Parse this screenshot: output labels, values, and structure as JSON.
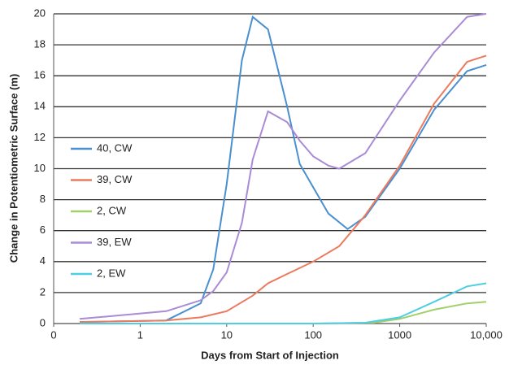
{
  "chart_data": {
    "type": "line",
    "xlabel": "Days from Start of Injection",
    "ylabel": "Change in Potentiometric Surface (m)",
    "xscale": "log",
    "xlim": [
      0.1,
      10000
    ],
    "xticks": [
      {
        "value": 0.1,
        "label": "0"
      },
      1,
      10,
      100,
      1000,
      {
        "value": 10000,
        "label": "10,000"
      }
    ],
    "ylim": [
      0,
      20
    ],
    "yticks": [
      0,
      2,
      4,
      6,
      8,
      10,
      12,
      14,
      16,
      18,
      20
    ],
    "grid": true,
    "legend": "left",
    "series": [
      {
        "name": "40, CW",
        "color": "#4a8fd0",
        "x": [
          0.2,
          2,
          5,
          7,
          10,
          15,
          20,
          30,
          50,
          70,
          100,
          150,
          250,
          400,
          1000,
          2500,
          6000,
          10000
        ],
        "values": [
          0.1,
          0.2,
          1.3,
          3.5,
          9,
          17,
          19.8,
          19,
          14,
          10.3,
          8.8,
          7.1,
          6.1,
          6.9,
          10,
          13.8,
          16.3,
          16.7
        ]
      },
      {
        "name": "39, CW",
        "color": "#ec7a5e",
        "x": [
          0.2,
          2,
          5,
          10,
          20,
          30,
          50,
          100,
          200,
          400,
          1000,
          2500,
          6000,
          10000
        ],
        "values": [
          0.1,
          0.2,
          0.4,
          0.8,
          1.8,
          2.6,
          3.2,
          4.0,
          5.0,
          7.0,
          10.2,
          14.2,
          16.9,
          17.3
        ]
      },
      {
        "name": "2, CW",
        "color": "#9fd06a",
        "x": [
          0.2,
          100,
          500,
          1000,
          2500,
          6000,
          10000
        ],
        "values": [
          0,
          0,
          0.05,
          0.3,
          0.9,
          1.3,
          1.4
        ]
      },
      {
        "name": "39, EW",
        "color": "#a98bd6",
        "x": [
          0.2,
          2,
          5,
          7,
          10,
          15,
          20,
          30,
          50,
          70,
          100,
          150,
          200,
          400,
          1000,
          2500,
          6000,
          10000
        ],
        "values": [
          0.3,
          0.8,
          1.5,
          2.1,
          3.3,
          6.5,
          10.6,
          13.7,
          13,
          11.8,
          10.8,
          10.2,
          10.0,
          11.0,
          14.4,
          17.5,
          19.8,
          20
        ]
      },
      {
        "name": "2, EW",
        "color": "#4fcde3",
        "x": [
          0.2,
          100,
          400,
          1000,
          2500,
          6000,
          10000
        ],
        "values": [
          0,
          0,
          0.05,
          0.4,
          1.4,
          2.4,
          2.6
        ]
      }
    ]
  }
}
